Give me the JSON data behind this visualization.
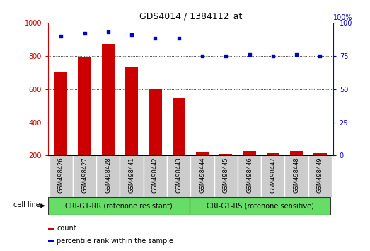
{
  "title": "GDS4014 / 1384112_at",
  "samples": [
    "GSM498426",
    "GSM498427",
    "GSM498428",
    "GSM498441",
    "GSM498442",
    "GSM498443",
    "GSM498444",
    "GSM498445",
    "GSM498446",
    "GSM498447",
    "GSM498448",
    "GSM498449"
  ],
  "bar_values": [
    700,
    790,
    870,
    735,
    600,
    548,
    218,
    210,
    228,
    215,
    228,
    215
  ],
  "scatter_values": [
    90,
    92,
    93,
    91,
    88,
    88,
    75,
    75,
    76,
    75,
    76,
    75
  ],
  "bar_color": "#cc0000",
  "scatter_color": "#0000cc",
  "ylim_left": [
    200,
    1000
  ],
  "ylim_right": [
    0,
    100
  ],
  "yticks_left": [
    200,
    400,
    600,
    800,
    1000
  ],
  "yticks_right": [
    0,
    25,
    50,
    75,
    100
  ],
  "group1_label": "CRI-G1-RR (rotenone resistant)",
  "group2_label": "CRI-G1-RS (rotenone sensitive)",
  "group1_count": 6,
  "group2_count": 6,
  "cell_line_label": "cell line",
  "legend_bar_label": "count",
  "legend_scatter_label": "percentile rank within the sample",
  "group_bg_color": "#66dd66",
  "tick_bg_color": "#cccccc",
  "bar_base": 200,
  "grid_yticks": [
    400,
    600,
    800
  ],
  "fig_width": 5.23,
  "fig_height": 3.54
}
